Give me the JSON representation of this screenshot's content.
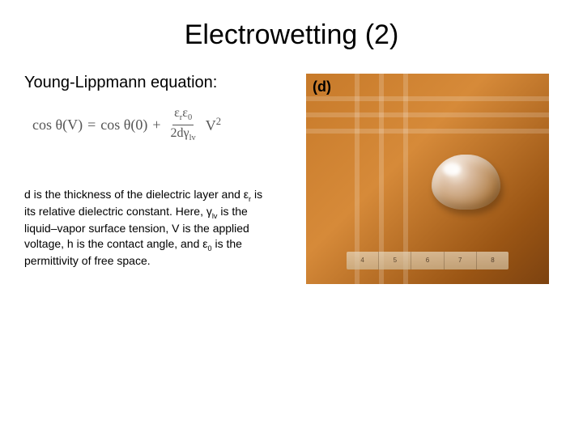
{
  "slide": {
    "title": "Electrowetting (2)",
    "subheading": "Young-Lippmann equation:",
    "equation": {
      "lhs": "cos θ(V)",
      "eq": "=",
      "term1": "cos θ(0)",
      "plus": "+",
      "frac_num_a": "ε",
      "frac_num_a_sub": "r",
      "frac_num_b": "ε",
      "frac_num_b_sub": "0",
      "frac_den_prefix": "2dγ",
      "frac_den_sub": "lv",
      "v": "V",
      "v_exp": "2"
    },
    "description": "d is the thickness of the dielectric layer and εr is its relative dielectric constant. Here, γlv is the liquid–vapor surface tension, V is the applied voltage, h is the contact angle, and ε0 is the permittivity of free space.",
    "figure": {
      "panel_label": "(d)",
      "ruler_ticks": [
        "4",
        "5",
        "6",
        "7",
        "8"
      ],
      "bg_gradient": [
        "#c77a2a",
        "#d68a39",
        "#9a5514",
        "#7c4210"
      ],
      "trace_color": "rgba(255,255,255,0.18)",
      "droplet_highlight": "rgba(255,255,255,0.85)"
    }
  },
  "style": {
    "title_fontsize": 34,
    "subheading_fontsize": 20,
    "equation_fontsize": 18,
    "equation_color": "#555555",
    "desc_fontsize": 14,
    "background": "#ffffff",
    "text_color": "#000000",
    "slide_size": [
      720,
      540
    ],
    "photo_size": [
      300,
      260
    ]
  }
}
